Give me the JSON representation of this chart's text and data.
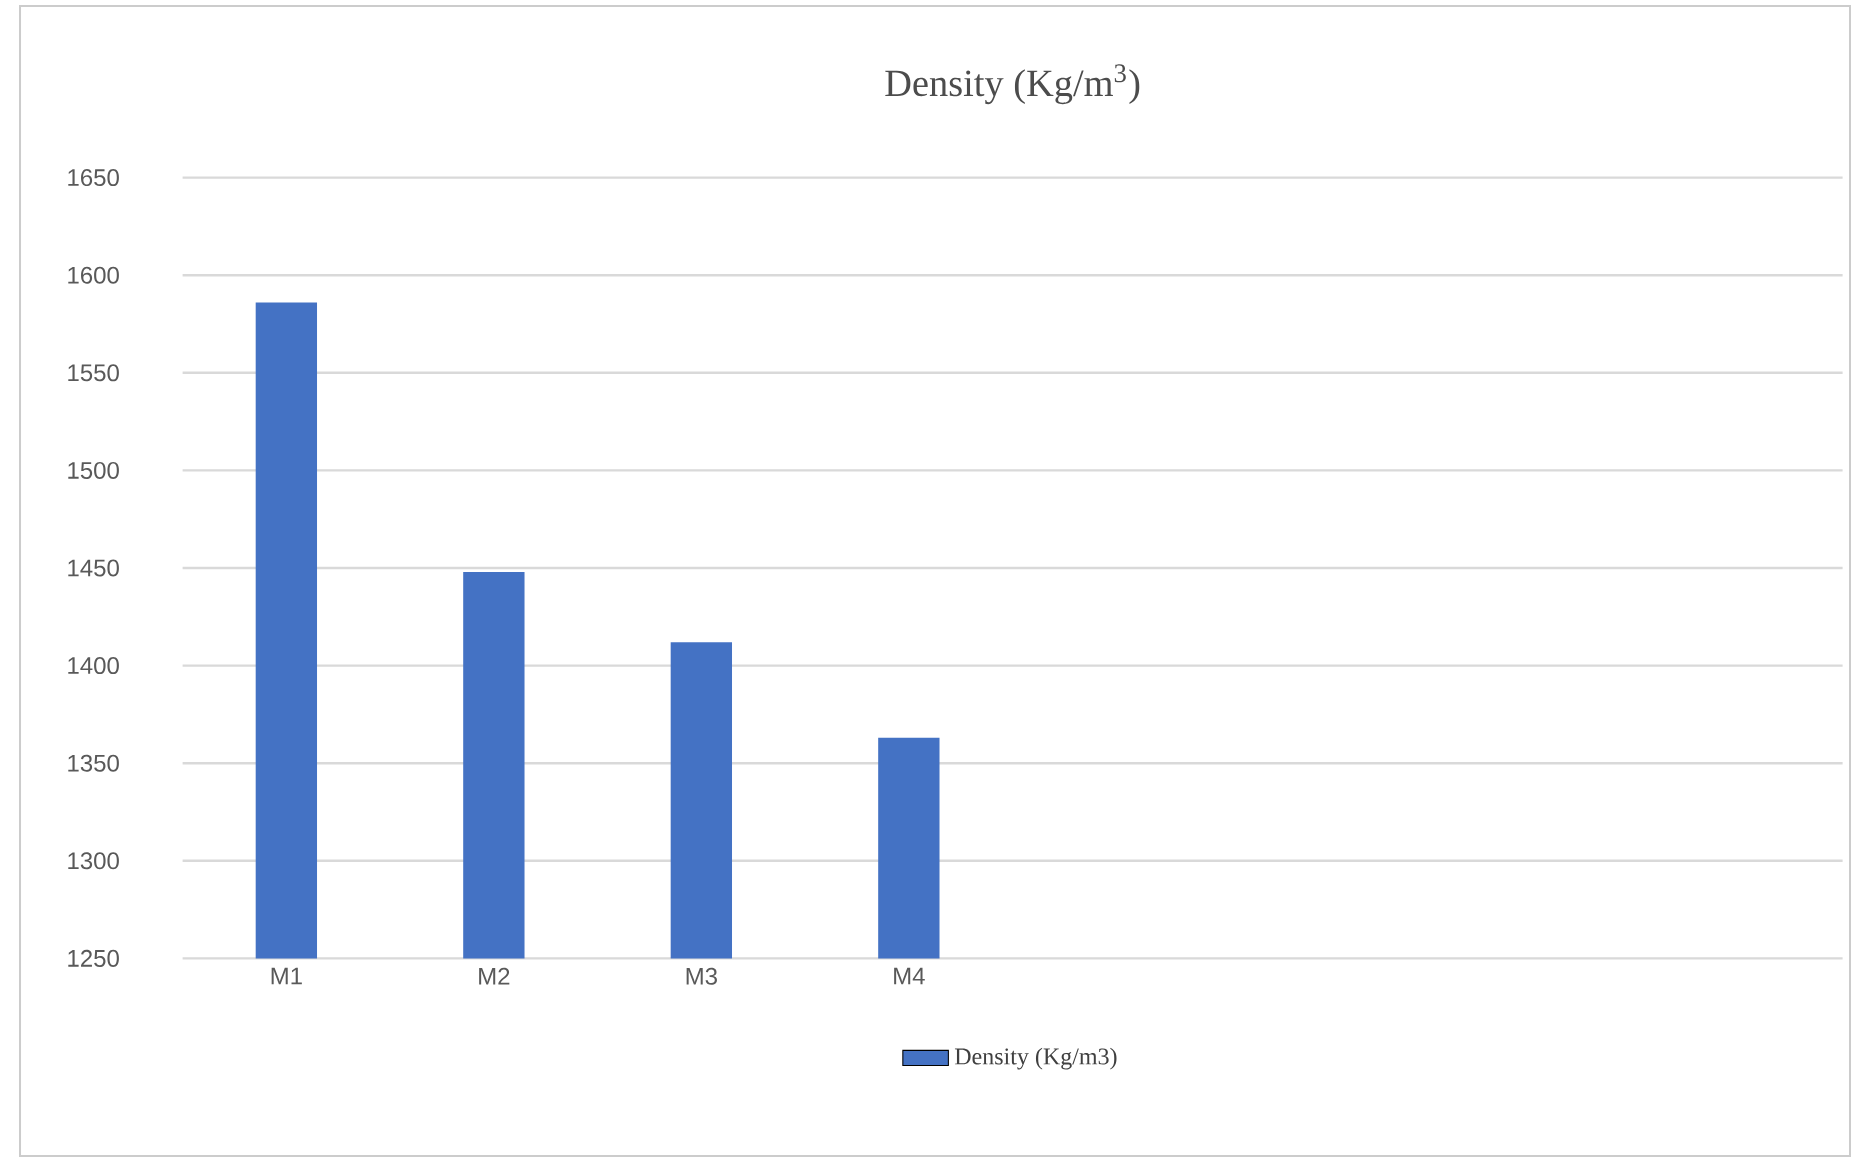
{
  "chart_data": {
    "type": "bar",
    "title": "Density (Kg/m$^{3}$)",
    "categories": [
      "M1",
      "M2",
      "M3",
      "M4",
      null,
      null,
      null,
      null
    ],
    "series": [
      {
        "name": "Density (Kg/m3)",
        "color": "#4472c4",
        "values": [
          1586,
          1448,
          1412,
          1363,
          null,
          null,
          null,
          null
        ]
      }
    ],
    "ylim": [
      1250,
      1650
    ],
    "yticks": [
      1250,
      1300,
      1350,
      1400,
      1450,
      1500,
      1550,
      1600,
      1650
    ],
    "grid": "y",
    "legend": "bottom"
  }
}
